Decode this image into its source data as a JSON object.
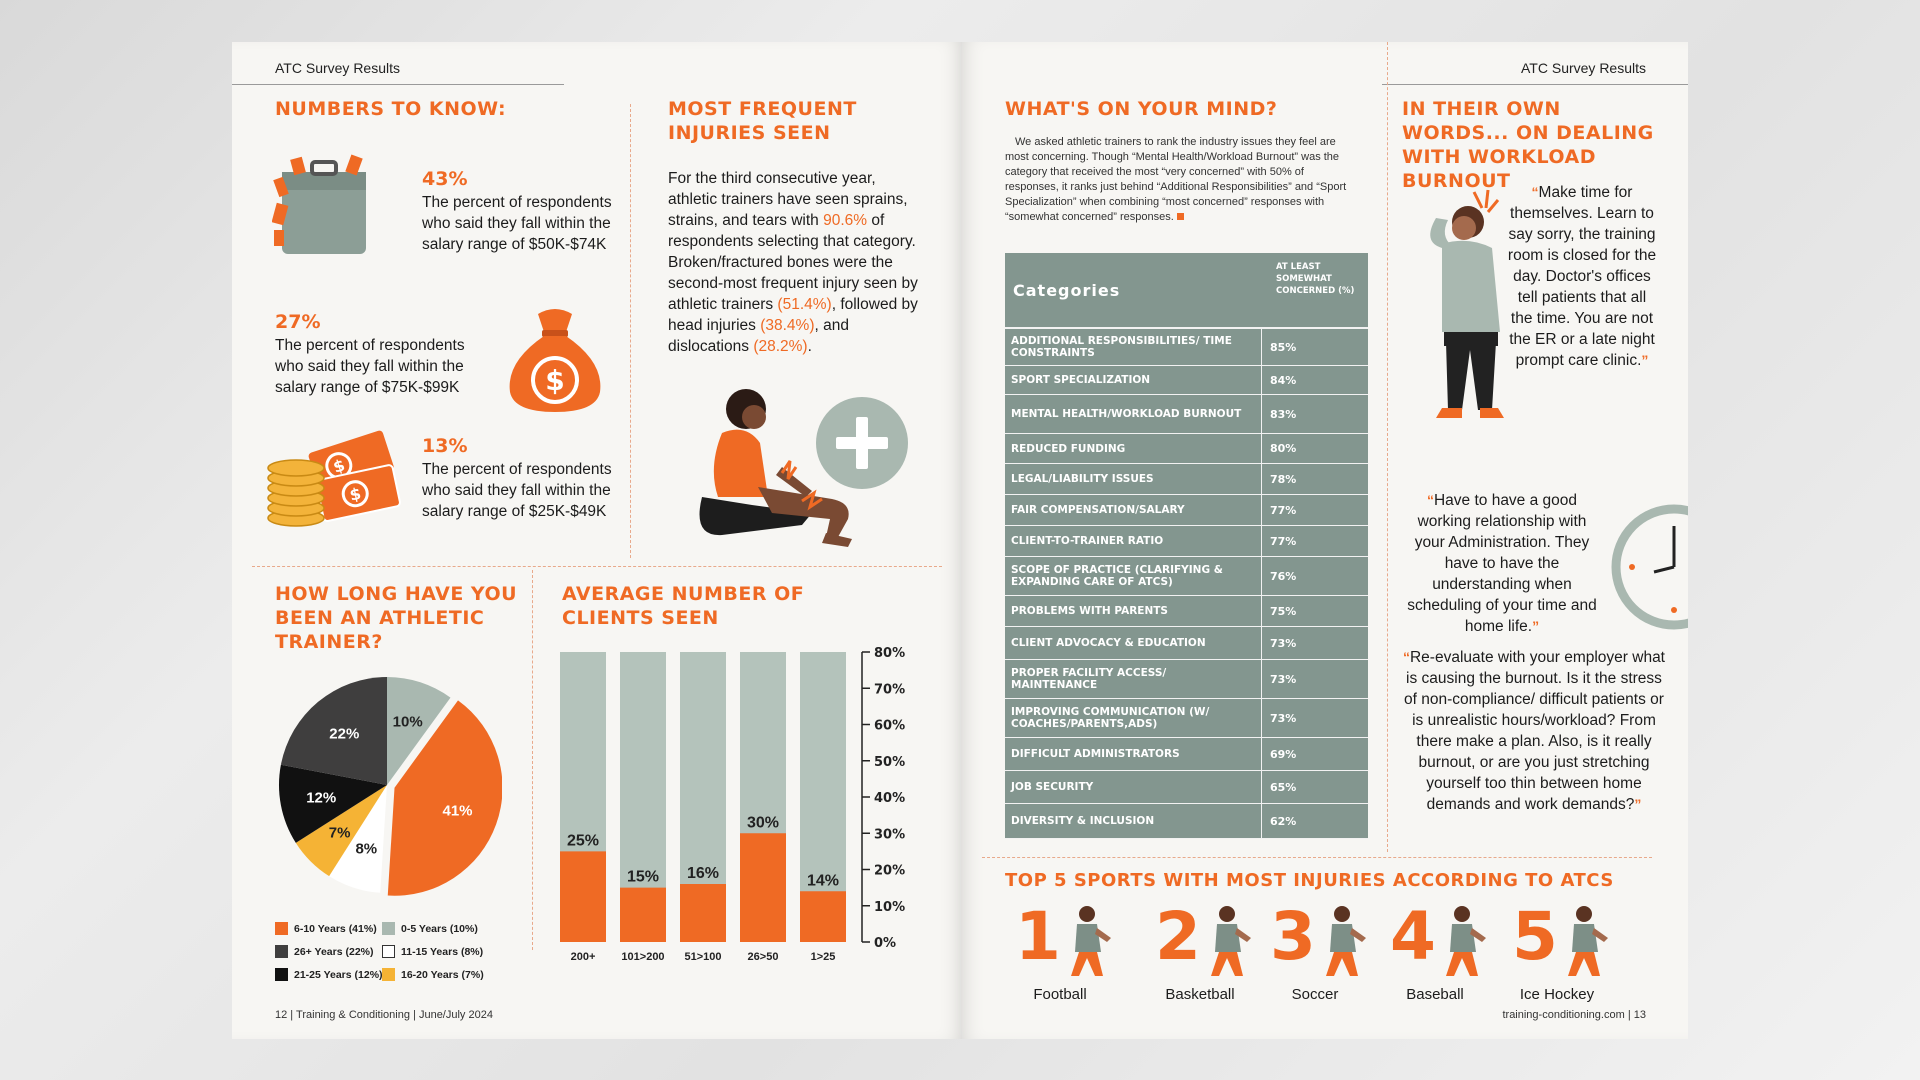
{
  "running_head": "ATC Survey Results",
  "colors": {
    "orange": "#ef6a24",
    "sage": "#83968f",
    "sage_light": "#b4c3bb",
    "dark": "#3f3e3e",
    "black": "#111111",
    "yellow": "#f5b335"
  },
  "numbers": {
    "heading": "Numbers to know:",
    "stats": [
      {
        "pct": "43%",
        "text": "The percent of respondents who said they fall within the salary range of $50K-$74K",
        "icon": "briefcase-icon"
      },
      {
        "pct": "27%",
        "text": "The percent of respondents who said they fall within the salary range of $75K-$99K",
        "icon": "money-bag-icon"
      },
      {
        "pct": "13%",
        "text": "The percent of respondents who said they fall within the salary range of $25K-$49K",
        "icon": "coins-cash-icon"
      }
    ]
  },
  "injuries": {
    "heading": "Most frequent injuries seen",
    "p1": "For the third consecutive year, athletic trainers have seen sprains, strains, and tears with",
    "h1": "90.6%",
    "p2": "of respondents selecting that category. Broken/fractured bones were the second-most frequent injury seen by athletic trainers",
    "h2": "(51.4%)",
    "p3": ", followed by head injuries",
    "h3": "(38.4%)",
    "p4": ", and dislocations",
    "h4": "(28.2%)",
    "p5": "."
  },
  "years_chart": {
    "heading": "How long have you been an athletic trainer?",
    "chart_data": {
      "type": "pie",
      "slices": [
        {
          "label": "6-10 Years (41%)",
          "value": 41,
          "display": "41%",
          "color": "#ef6a24"
        },
        {
          "label": "0-5 Years (10%)",
          "value": 10,
          "display": "10%",
          "color": "#a9b8b0"
        },
        {
          "label": "26+ Years (22%)",
          "value": 22,
          "display": "22%",
          "color": "#3f3e3e"
        },
        {
          "label": "11-15 Years (8%)",
          "value": 8,
          "display": "8%",
          "color": "#ffffff"
        },
        {
          "label": "21-25 Years (12%)",
          "value": 12,
          "display": "12%",
          "color": "#111111"
        },
        {
          "label": "16-20 Years (7%)",
          "value": 7,
          "display": "7%",
          "color": "#f5b335"
        }
      ],
      "draw_order": [
        0,
        3,
        5,
        4,
        2,
        1
      ],
      "legend_position": "bottom"
    }
  },
  "clients_chart": {
    "heading": "Average number of clients seen",
    "chart_data": {
      "type": "bar",
      "stacked_on_full": true,
      "categories": [
        "200+",
        "101>200",
        "51>100",
        "26>50",
        "1>25"
      ],
      "values": [
        25,
        15,
        16,
        30,
        14
      ],
      "labels": [
        "25%",
        "15%",
        "16%",
        "30%",
        "14%"
      ],
      "ylim": [
        0,
        80
      ],
      "yticks": [
        "0%",
        "10%",
        "20%",
        "30%",
        "40%",
        "50%",
        "60%",
        "70%",
        "80%"
      ]
    }
  },
  "mind": {
    "heading": "What's on your mind?",
    "intro": "We asked athletic trainers to rank the industry issues they feel are most concerning. Though “Mental Health/Workload Burnout” was the category that received the most “very concerned” with 50% of responses, it ranks just behind “Additional Responsibilities” and “Sport Specialization” when combining “most concerned” responses with “somewhat concerned” responses.",
    "col1": "Categories",
    "col2": "At least somewhat concerned (%)",
    "rows": [
      {
        "cat": "Additional Responsibilities/ Time Constraints",
        "val": "85%",
        "h": 36
      },
      {
        "cat": "Sport Specialization",
        "val": "84%",
        "h": 28
      },
      {
        "cat": "Mental Health/Workload Burnout",
        "val": "83%",
        "h": 38
      },
      {
        "cat": "Reduced Funding",
        "val": "80%",
        "h": 29
      },
      {
        "cat": "Legal/Liability Issues",
        "val": "78%",
        "h": 30
      },
      {
        "cat": "Fair Compensation/Salary",
        "val": "77%",
        "h": 30
      },
      {
        "cat": "Client-to-Trainer Ratio",
        "val": "77%",
        "h": 30
      },
      {
        "cat": "Scope of Practice (Clarifying & Expanding Care of ATCs)",
        "val": "76%",
        "h": 38
      },
      {
        "cat": "Problems with Parents",
        "val": "75%",
        "h": 30
      },
      {
        "cat": "Client Advocacy & Education",
        "val": "73%",
        "h": 32
      },
      {
        "cat": "Proper Facility Access/ Maintenance",
        "val": "73%",
        "h": 38
      },
      {
        "cat": "Improving Communication (w/ Coaches/Parents,ADs)",
        "val": "73%",
        "h": 38
      },
      {
        "cat": "Difficult Administrators",
        "val": "69%",
        "h": 32
      },
      {
        "cat": "Job Security",
        "val": "65%",
        "h": 32
      },
      {
        "cat": "Diversity & Inclusion",
        "val": "62%",
        "h": 34
      }
    ]
  },
  "words": {
    "heading": "In their own words... on dealing with workload burnout",
    "q1": "Make time for themselves. Learn to say sorry, the training room is closed for the day. Doctor's offices tell patients that all the time. You are not the ER or a late night prompt care clinic.",
    "q2": "Have to have a good working relationship with your Administration. They have to have the understanding when scheduling of your time and home life.",
    "q3": "Re-evaluate with your employer what is causing the burnout. Is it the stress of non-compliance/ difficult patients or is unrealistic hours/workload? From there make a plan. Also, is it really burnout, or are you just stretching yourself too thin between home demands and work demands?",
    "open": "“",
    "close": "”"
  },
  "sports": {
    "heading": "Top 5 sports with most injuries according to ATCs",
    "items": [
      {
        "rank": "1",
        "name": "Football",
        "icon": "football-player-icon"
      },
      {
        "rank": "2",
        "name": "Basketball",
        "icon": "basketball-player-icon"
      },
      {
        "rank": "3",
        "name": "Soccer",
        "icon": "soccer-player-icon"
      },
      {
        "rank": "4",
        "name": "Baseball",
        "icon": "baseball-player-icon"
      },
      {
        "rank": "5",
        "name": "Ice Hockey",
        "icon": "hockey-player-icon"
      }
    ]
  },
  "footer": {
    "left_page": "12",
    "left_pub": "Training & Conditioning",
    "left_date": "June/July 2024",
    "right_site": "training-conditioning.com",
    "right_page": "13"
  }
}
